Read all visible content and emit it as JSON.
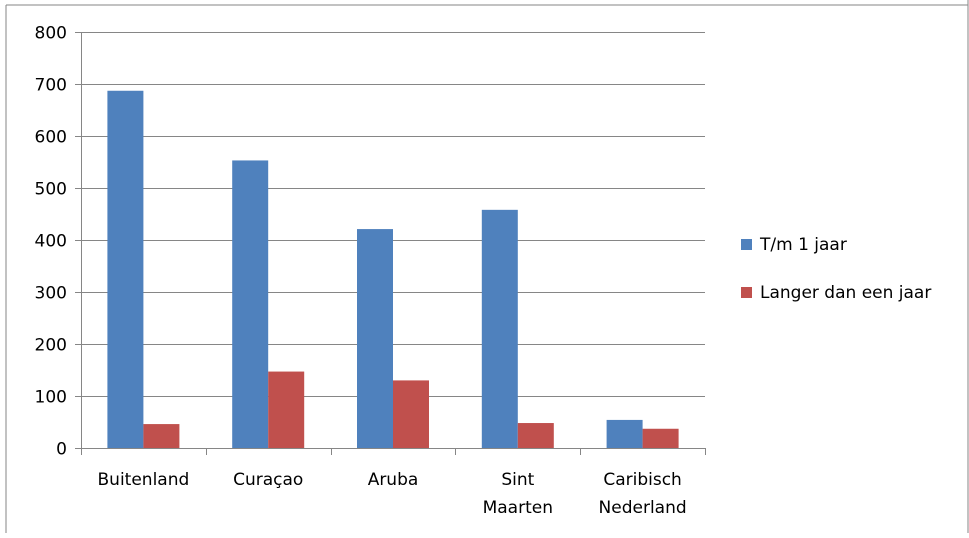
{
  "chart_data": {
    "type": "bar",
    "title": "",
    "xlabel": "",
    "ylabel": "",
    "categories": [
      [
        "Buitenland"
      ],
      [
        "Curaçao"
      ],
      [
        "Aruba"
      ],
      [
        "Sint",
        "Maarten"
      ],
      [
        "Caribisch",
        "Nederland"
      ]
    ],
    "series": [
      {
        "name": "T/m 1 jaar",
        "color": "#4F81BD",
        "values": [
          687,
          553,
          421,
          458,
          54
        ]
      },
      {
        "name": "Langer dan een jaar",
        "color": "#C0504D",
        "values": [
          46,
          147,
          130,
          48,
          37
        ]
      }
    ],
    "ylim": [
      0,
      800
    ],
    "yticks": [
      "0",
      "100",
      "200",
      "300",
      "400",
      "500",
      "600",
      "700",
      "800"
    ],
    "grid": true,
    "legend_position": "right"
  }
}
